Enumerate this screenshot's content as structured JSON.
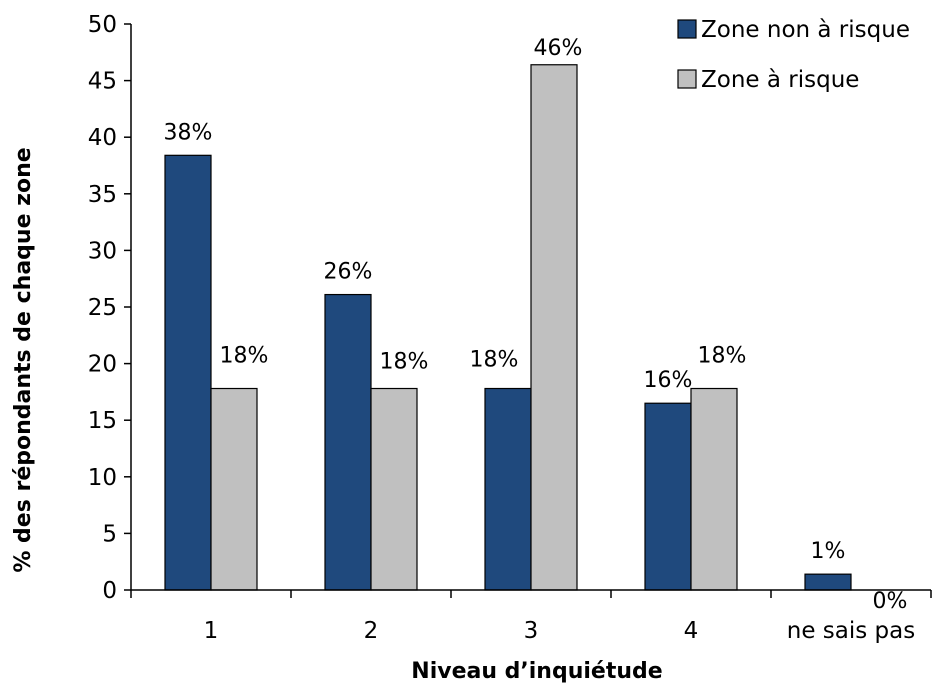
{
  "chart_data": {
    "type": "bar",
    "categories": [
      "1",
      "2",
      "3",
      "4",
      "ne sais pas"
    ],
    "series": [
      {
        "name": "Zone non à risque",
        "values": [
          38.4,
          26.1,
          17.8,
          16.5,
          1.4
        ],
        "labels": [
          "38%",
          "26%",
          "18%",
          "16%",
          "1%"
        ],
        "color": "#1f497d"
      },
      {
        "name": "Zone à risque",
        "values": [
          17.8,
          17.8,
          46.4,
          17.8,
          0
        ],
        "labels": [
          "18%",
          "18%",
          "46%",
          "18%",
          "0%"
        ],
        "color": "#c0c0c0"
      }
    ],
    "title": "",
    "xlabel": "Niveau d’inquiétude",
    "ylabel": "% des répondants de chaque zone",
    "ylim": [
      0,
      50
    ],
    "yticks": [
      0,
      5,
      10,
      15,
      20,
      25,
      30,
      35,
      40,
      45,
      50
    ],
    "grid": false,
    "legend_position": "top-right"
  }
}
